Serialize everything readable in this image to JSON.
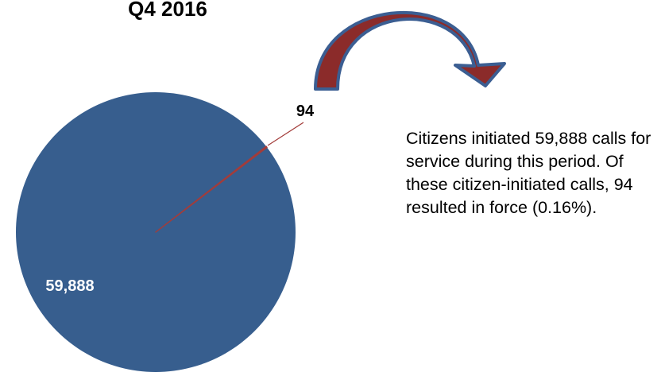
{
  "chart_data": {
    "type": "pie",
    "title": "Q4 2016",
    "slices": [
      {
        "label": "59,888",
        "value": 59888,
        "color": "#375e8e",
        "label_color": "#ffffff"
      },
      {
        "label": "94",
        "value": 94,
        "color": "#a33c3a",
        "label_color": "#000000"
      }
    ],
    "annotation": "Citizens initiated 59,888 calls for service during this period. Of these citizen-initiated calls, 94 resulted in force (0.16%).",
    "arrow": {
      "fill": "#8b2b2a",
      "stroke": "#3b5e92"
    }
  }
}
